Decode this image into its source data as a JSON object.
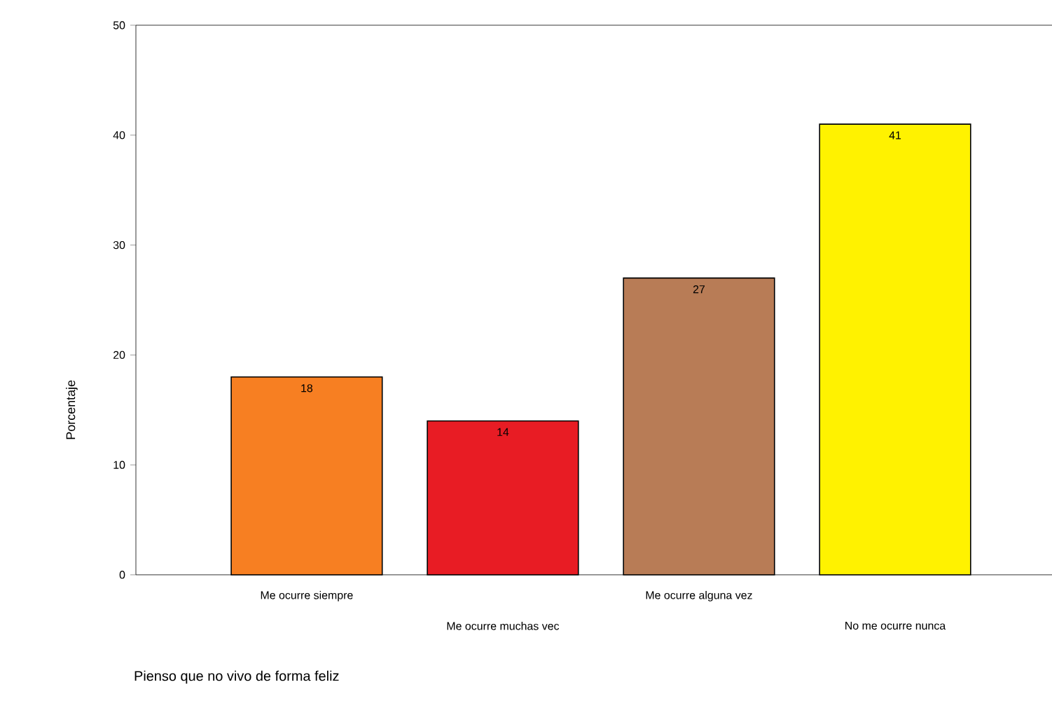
{
  "chart_data": {
    "type": "bar",
    "xlabel": "Pienso que no vivo de forma feliz",
    "ylabel": "Porcentaje",
    "categories": [
      "Me ocurre siempre",
      "Me ocurre muchas vec",
      "Me ocurre alguna vez",
      "No me ocurre nunca"
    ],
    "values": [
      18,
      14,
      27,
      41
    ],
    "colors": [
      "#f77f22",
      "#e81c24",
      "#b87c56",
      "#fff200"
    ],
    "ylim": [
      0,
      50
    ],
    "yticks": [
      0,
      10,
      20,
      30,
      40,
      50
    ],
    "data_labels": true,
    "grid": false
  }
}
